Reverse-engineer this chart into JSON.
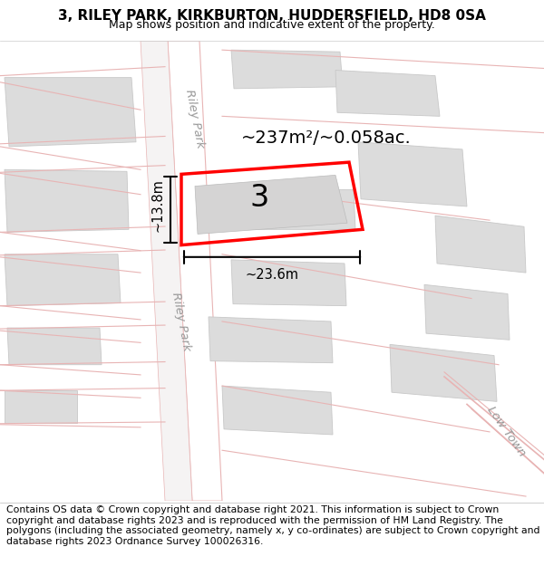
{
  "title_line1": "3, RILEY PARK, KIRKBURTON, HUDDERSFIELD, HD8 0SA",
  "title_line2": "Map shows position and indicative extent of the property.",
  "footer_text": "Contains OS data © Crown copyright and database right 2021. This information is subject to Crown copyright and database rights 2023 and is reproduced with the permission of HM Land Registry. The polygons (including the associated geometry, namely x, y co-ordinates) are subject to Crown copyright and database rights 2023 Ordnance Survey 100026316.",
  "area_label": "~237m²/~0.058ac.",
  "number_label": "3",
  "dim_width": "~23.6m",
  "dim_height": "~13.8m",
  "road_label1": "Riley Park",
  "road_label2": "Riley Park",
  "road_label3": "Low Town",
  "map_bg": "#eeecec",
  "road_color": "#e8b4b4",
  "highlight_color": "#ff0000",
  "block_fill": "#dcdcdc",
  "block_stroke": "#c8c8c8",
  "road_fill": "#ffffff",
  "road_edge": "#c8c8c8",
  "title_fontsize": 11,
  "footer_fontsize": 7.8
}
